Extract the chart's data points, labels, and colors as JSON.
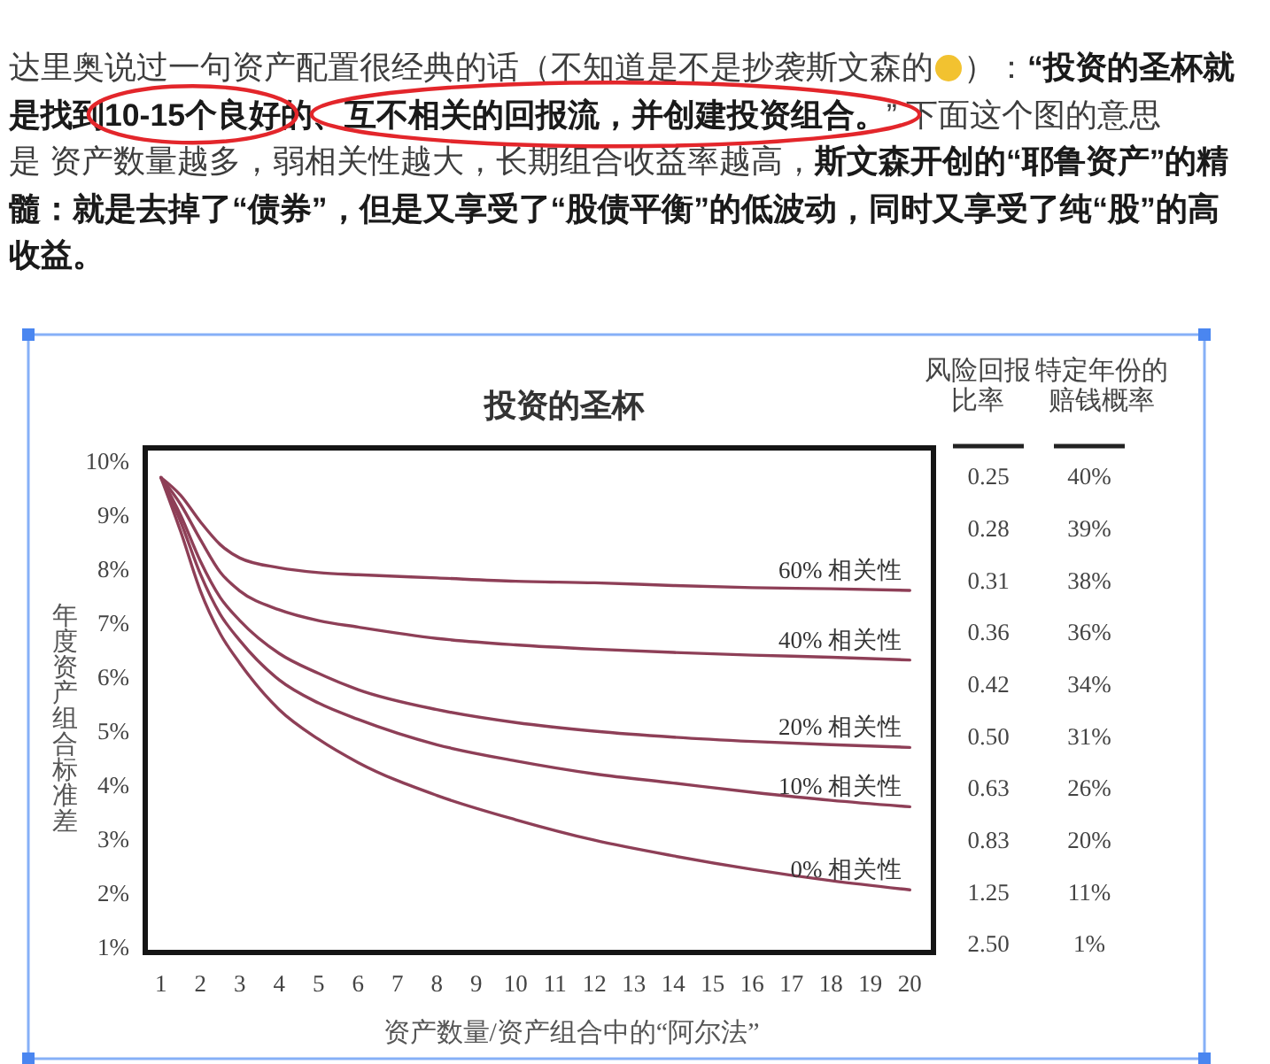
{
  "chart_data": [
    {
      "type": "other",
      "annotations": [
        "达里奥说过一句资产配置很经典的话（不知道是不是抄袭斯文森的",
        "）：",
        "“投资的圣杯就",
        "是找到",
        "10-15个良好",
        "的、",
        "互不相关的回报流，并创建投资组合。",
        "” 下面这个图的意思",
        "是 资产数量越多，弱相关性越大，长期组合收益率越高，",
        "斯文森开创的“耶鲁资产”的精",
        "髓：就是去掉了“债券”，但是又享受了“股债平衡”的低波动，同时又享受了纯“股”的高",
        "收益。"
      ]
    },
    {
      "type": "line",
      "title": "投资的圣杯",
      "xlabel": "资产数量/资产组合中的“阿尔法”",
      "ylabel": "年度资产组合标准差",
      "x": [
        1,
        1.5,
        2,
        2.5,
        3,
        4,
        5,
        6,
        8,
        10,
        12,
        14,
        16,
        18,
        20
      ],
      "xlim": [
        0.6,
        20.6
      ],
      "xticks": [
        1,
        2,
        3,
        4,
        5,
        6,
        7,
        8,
        9,
        10,
        11,
        12,
        13,
        14,
        15,
        16,
        17,
        18,
        19,
        20
      ],
      "ylim": [
        0.9,
        10.25
      ],
      "yticks": [
        {
          "value": 1,
          "label": "1%"
        },
        {
          "value": 2,
          "label": "2%"
        },
        {
          "value": 3,
          "label": "3%"
        },
        {
          "value": 4,
          "label": "4%"
        },
        {
          "value": 5,
          "label": "5%"
        },
        {
          "value": 6,
          "label": "6%"
        },
        {
          "value": 7,
          "label": "7%"
        },
        {
          "value": 8,
          "label": "8%"
        },
        {
          "value": 9,
          "label": "9%"
        },
        {
          "value": 10,
          "label": "10%"
        }
      ],
      "series": [
        {
          "name": "60% 相关性",
          "color": "#8e3f57",
          "values": [
            9.7,
            9.37,
            8.88,
            8.46,
            8.21,
            8.03,
            7.94,
            7.9,
            7.84,
            7.78,
            7.75,
            7.7,
            7.66,
            7.64,
            7.61
          ]
        },
        {
          "name": "40% 相关性",
          "color": "#8e3f57",
          "values": [
            9.7,
            9.2,
            8.55,
            7.95,
            7.6,
            7.25,
            7.05,
            6.93,
            6.72,
            6.6,
            6.52,
            6.46,
            6.41,
            6.37,
            6.32
          ]
        },
        {
          "name": "20% 相关性",
          "color": "#8e3f57",
          "values": [
            9.7,
            9.0,
            8.15,
            7.48,
            7.05,
            6.44,
            6.07,
            5.77,
            5.4,
            5.16,
            5.0,
            4.89,
            4.81,
            4.75,
            4.7
          ]
        },
        {
          "name": "10% 相关性",
          "color": "#8e3f57",
          "values": [
            9.7,
            8.88,
            7.91,
            7.17,
            6.68,
            5.95,
            5.52,
            5.22,
            4.75,
            4.45,
            4.21,
            4.04,
            3.87,
            3.72,
            3.6
          ]
        },
        {
          "name": "0% 相关性",
          "color": "#8e3f57",
          "values": [
            9.7,
            8.7,
            7.6,
            6.81,
            6.26,
            5.4,
            4.85,
            4.42,
            3.81,
            3.36,
            2.98,
            2.69,
            2.44,
            2.23,
            2.06
          ]
        }
      ]
    },
    {
      "type": "other",
      "annotations": [
        "风险回报比率",
        "特定年份的赔钱概率",
        "0.25",
        "40%",
        "0.28",
        "39%",
        "0.31",
        "38%",
        "0.36",
        "36%",
        "0.42",
        "34%",
        "0.50",
        "31%",
        "0.63",
        "26%",
        "0.83",
        "20%",
        "1.25",
        "11%",
        "2.50",
        "1%"
      ]
    }
  ]
}
